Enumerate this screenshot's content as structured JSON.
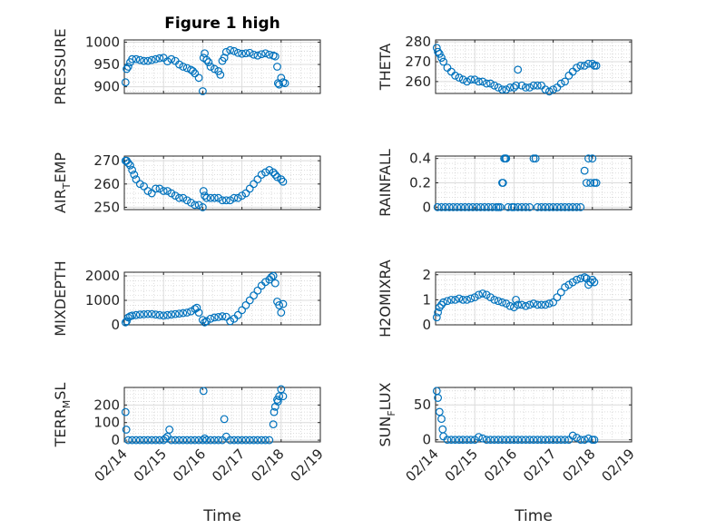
{
  "figure": {
    "title": "Figure 1 high",
    "marker_color": "#0072bd",
    "time_ticks": [
      "02/14",
      "02/15",
      "02/16",
      "02/17",
      "02/18",
      "02/19"
    ],
    "time_range": [
      14,
      19
    ],
    "xlabel": "Time"
  },
  "chart_data": [
    {
      "type": "scatter",
      "ylabel_main": "PRESSURE",
      "ylabel_sub": "",
      "ylabel_rest": "",
      "ylim": [
        885,
        1005
      ],
      "yticks": [
        900,
        950,
        1000
      ],
      "grid": true,
      "x": [
        14.03,
        14.06,
        14.1,
        14.15,
        14.2,
        14.3,
        14.4,
        14.5,
        14.6,
        14.7,
        14.8,
        14.9,
        15.0,
        15.1,
        15.2,
        15.3,
        15.4,
        15.5,
        15.6,
        15.7,
        15.75,
        15.8,
        15.9,
        16.0,
        16.02,
        16.05,
        16.1,
        16.15,
        16.2,
        16.3,
        16.4,
        16.45,
        16.5,
        16.55,
        16.6,
        16.7,
        16.8,
        16.9,
        17.0,
        17.1,
        17.2,
        17.3,
        17.4,
        17.5,
        17.6,
        17.7,
        17.8,
        17.85,
        17.9,
        17.92,
        17.95,
        18.0,
        18.05,
        18.1
      ],
      "values": [
        910,
        940,
        945,
        955,
        962,
        962,
        960,
        958,
        958,
        960,
        962,
        964,
        965,
        957,
        962,
        958,
        950,
        945,
        942,
        938,
        935,
        930,
        920,
        890,
        965,
        975,
        960,
        955,
        945,
        940,
        935,
        927,
        958,
        965,
        978,
        982,
        980,
        976,
        974,
        975,
        976,
        972,
        970,
        973,
        975,
        972,
        970,
        968,
        945,
        908,
        905,
        920,
        910,
        908
      ]
    },
    {
      "type": "scatter",
      "ylabel_main": "THETA",
      "ylabel_sub": "",
      "ylabel_rest": "",
      "ylim": [
        254,
        281
      ],
      "yticks": [
        260,
        270,
        280
      ],
      "grid": true,
      "x": [
        14.03,
        14.06,
        14.1,
        14.15,
        14.2,
        14.3,
        14.4,
        14.5,
        14.6,
        14.7,
        14.8,
        14.9,
        15.0,
        15.1,
        15.2,
        15.3,
        15.4,
        15.5,
        15.6,
        15.7,
        15.8,
        15.9,
        16.0,
        16.05,
        16.1,
        16.2,
        16.3,
        16.4,
        16.5,
        16.6,
        16.7,
        16.8,
        16.9,
        17.0,
        17.1,
        17.2,
        17.3,
        17.4,
        17.5,
        17.6,
        17.7,
        17.8,
        17.9,
        18.0,
        18.05,
        18.1
      ],
      "values": [
        277,
        275,
        274,
        272,
        270,
        267,
        265,
        263,
        262,
        261,
        260,
        261,
        261,
        260,
        260,
        259,
        259,
        258,
        257,
        256,
        256,
        257,
        257,
        258,
        266,
        258,
        257,
        257,
        258,
        258,
        258,
        256,
        255,
        256,
        257,
        259,
        260,
        263,
        265,
        267,
        268,
        268,
        269,
        269,
        268,
        268
      ]
    },
    {
      "type": "scatter",
      "ylabel_main": "AIR",
      "ylabel_sub": "T",
      "ylabel_rest": "EMP",
      "ylim": [
        249,
        272
      ],
      "yticks": [
        250,
        260,
        270
      ],
      "grid": true,
      "x": [
        14.03,
        14.06,
        14.1,
        14.15,
        14.2,
        14.25,
        14.3,
        14.4,
        14.5,
        14.6,
        14.7,
        14.8,
        14.9,
        15.0,
        15.1,
        15.2,
        15.3,
        15.4,
        15.5,
        15.6,
        15.7,
        15.8,
        15.9,
        16.0,
        16.02,
        16.05,
        16.1,
        16.2,
        16.3,
        16.4,
        16.5,
        16.6,
        16.7,
        16.8,
        16.9,
        17.0,
        17.1,
        17.2,
        17.3,
        17.4,
        17.5,
        17.6,
        17.7,
        17.8,
        17.85,
        17.9,
        18.0,
        18.05
      ],
      "values": [
        270,
        270,
        269,
        268,
        266,
        264,
        262,
        260,
        259,
        257,
        256,
        258,
        258,
        257,
        257,
        256,
        255,
        254,
        254,
        253,
        252,
        251,
        251,
        250,
        257,
        255,
        254,
        254,
        254,
        254,
        253,
        253,
        253,
        254,
        254,
        255,
        256,
        258,
        260,
        262,
        264,
        265,
        266,
        265,
        264,
        263,
        262,
        261
      ]
    },
    {
      "type": "scatter",
      "ylabel_main": "RAINFALL",
      "ylabel_sub": "",
      "ylabel_rest": "",
      "ylim": [
        -0.02,
        0.42
      ],
      "yticks": [
        0,
        0.2,
        0.4
      ],
      "grid": true,
      "x": [
        14.05,
        14.15,
        14.25,
        14.35,
        14.45,
        14.55,
        14.65,
        14.75,
        14.85,
        14.95,
        15.05,
        15.15,
        15.25,
        15.35,
        15.45,
        15.55,
        15.6,
        15.65,
        15.7,
        15.72,
        15.75,
        15.78,
        15.8,
        15.85,
        15.95,
        16.0,
        16.1,
        16.2,
        16.3,
        16.4,
        16.5,
        16.55,
        16.6,
        16.7,
        16.8,
        16.9,
        17.0,
        17.1,
        17.2,
        17.3,
        17.4,
        17.5,
        17.6,
        17.7,
        17.8,
        17.85,
        17.9,
        17.95,
        18.0,
        18.05,
        18.1
      ],
      "values": [
        0,
        0,
        0,
        0,
        0,
        0,
        0,
        0,
        0,
        0,
        0,
        0,
        0,
        0,
        0,
        0,
        0,
        0,
        0.2,
        0.2,
        0.4,
        0.4,
        0.4,
        0,
        0,
        0,
        0,
        0,
        0,
        0,
        0.4,
        0.4,
        0,
        0,
        0,
        0,
        0,
        0,
        0,
        0,
        0,
        0,
        0,
        0,
        0.3,
        0.2,
        0.4,
        0.2,
        0.4,
        0.2,
        0.2
      ]
    },
    {
      "type": "scatter",
      "ylabel_main": "MIXDEPTH",
      "ylabel_sub": "",
      "ylabel_rest": "",
      "ylim": [
        0,
        2150
      ],
      "yticks": [
        0,
        1000,
        2000
      ],
      "grid": true,
      "x": [
        14.03,
        14.06,
        14.1,
        14.15,
        14.2,
        14.3,
        14.4,
        14.5,
        14.6,
        14.7,
        14.8,
        14.9,
        15.0,
        15.1,
        15.2,
        15.3,
        15.4,
        15.5,
        15.6,
        15.7,
        15.8,
        15.85,
        15.9,
        16.0,
        16.05,
        16.1,
        16.2,
        16.3,
        16.4,
        16.5,
        16.6,
        16.7,
        16.8,
        16.9,
        17.0,
        17.1,
        17.2,
        17.3,
        17.4,
        17.5,
        17.6,
        17.7,
        17.75,
        17.8,
        17.85,
        17.9,
        17.95,
        18.0,
        18.05
      ],
      "values": [
        100,
        150,
        300,
        350,
        380,
        400,
        420,
        430,
        440,
        440,
        420,
        400,
        380,
        400,
        420,
        440,
        460,
        480,
        500,
        550,
        650,
        700,
        500,
        200,
        100,
        150,
        250,
        300,
        320,
        350,
        330,
        150,
        250,
        400,
        600,
        800,
        1000,
        1200,
        1400,
        1600,
        1750,
        1850,
        1950,
        2000,
        1700,
        950,
        800,
        500,
        850
      ]
    },
    {
      "type": "scatter",
      "ylabel_main": "H2OMIXRA",
      "ylabel_sub": "",
      "ylabel_rest": "",
      "ylim": [
        0,
        2.1
      ],
      "yticks": [
        0,
        1,
        2
      ],
      "grid": true,
      "x": [
        14.03,
        14.06,
        14.1,
        14.15,
        14.2,
        14.3,
        14.4,
        14.5,
        14.6,
        14.7,
        14.8,
        14.9,
        15.0,
        15.1,
        15.2,
        15.3,
        15.4,
        15.5,
        15.6,
        15.7,
        15.8,
        15.9,
        16.0,
        16.05,
        16.1,
        16.2,
        16.3,
        16.4,
        16.5,
        16.6,
        16.7,
        16.8,
        16.9,
        17.0,
        17.1,
        17.2,
        17.3,
        17.4,
        17.5,
        17.6,
        17.7,
        17.8,
        17.85,
        17.9,
        17.95,
        18.0,
        18.05
      ],
      "values": [
        0.3,
        0.5,
        0.7,
        0.8,
        0.9,
        0.95,
        1.0,
        1.0,
        1.05,
        1.0,
        1.0,
        1.05,
        1.1,
        1.2,
        1.25,
        1.2,
        1.1,
        1.0,
        0.95,
        0.9,
        0.85,
        0.75,
        0.7,
        1.0,
        0.8,
        0.8,
        0.75,
        0.8,
        0.85,
        0.8,
        0.8,
        0.8,
        0.85,
        0.9,
        1.1,
        1.3,
        1.5,
        1.6,
        1.7,
        1.8,
        1.85,
        1.9,
        1.85,
        1.6,
        1.7,
        1.8,
        1.7
      ]
    },
    {
      "type": "scatter",
      "ylabel_main": "TERR",
      "ylabel_sub": "M",
      "ylabel_rest": "SL",
      "ylim": [
        -10,
        300
      ],
      "yticks": [
        0,
        100,
        200
      ],
      "grid": true,
      "x": [
        14.03,
        14.05,
        14.1,
        14.2,
        14.3,
        14.4,
        14.5,
        14.6,
        14.7,
        14.8,
        14.9,
        15.0,
        15.05,
        15.1,
        15.15,
        15.2,
        15.3,
        15.4,
        15.5,
        15.6,
        15.7,
        15.8,
        15.9,
        16.0,
        16.02,
        16.05,
        16.1,
        16.2,
        16.3,
        16.4,
        16.5,
        16.55,
        16.6,
        16.7,
        16.8,
        16.9,
        17.0,
        17.1,
        17.2,
        17.3,
        17.4,
        17.5,
        17.6,
        17.7,
        17.8,
        17.82,
        17.85,
        17.9,
        17.92,
        17.95,
        18.0,
        18.05
      ],
      "values": [
        160,
        60,
        0,
        0,
        0,
        0,
        0,
        0,
        0,
        0,
        0,
        0,
        10,
        20,
        60,
        0,
        0,
        0,
        0,
        0,
        0,
        0,
        0,
        0,
        280,
        10,
        0,
        0,
        0,
        0,
        0,
        120,
        20,
        0,
        0,
        0,
        0,
        0,
        0,
        0,
        0,
        0,
        0,
        0,
        90,
        160,
        190,
        230,
        220,
        250,
        290,
        250
      ]
    },
    {
      "type": "scatter",
      "ylabel_main": "SUN",
      "ylabel_sub": "F",
      "ylabel_rest": "LUX",
      "ylim": [
        -3,
        75
      ],
      "yticks": [
        0,
        50
      ],
      "grid": true,
      "x": [
        14.03,
        14.06,
        14.1,
        14.15,
        14.18,
        14.2,
        14.3,
        14.4,
        14.5,
        14.6,
        14.7,
        14.8,
        14.9,
        15.0,
        15.1,
        15.2,
        15.3,
        15.4,
        15.5,
        15.6,
        15.7,
        15.8,
        15.9,
        16.0,
        16.1,
        16.2,
        16.3,
        16.4,
        16.5,
        16.6,
        16.7,
        16.8,
        16.9,
        17.0,
        17.1,
        17.2,
        17.3,
        17.4,
        17.5,
        17.6,
        17.7,
        17.8,
        17.9,
        18.0,
        18.05
      ],
      "values": [
        70,
        60,
        40,
        30,
        15,
        5,
        0,
        0,
        0,
        0,
        0,
        0,
        0,
        0,
        4,
        2,
        0,
        0,
        0,
        0,
        0,
        0,
        0,
        0,
        0,
        0,
        0,
        0,
        0,
        0,
        0,
        0,
        0,
        0,
        0,
        0,
        0,
        0,
        6,
        3,
        0,
        0,
        2,
        0,
        0
      ]
    }
  ]
}
